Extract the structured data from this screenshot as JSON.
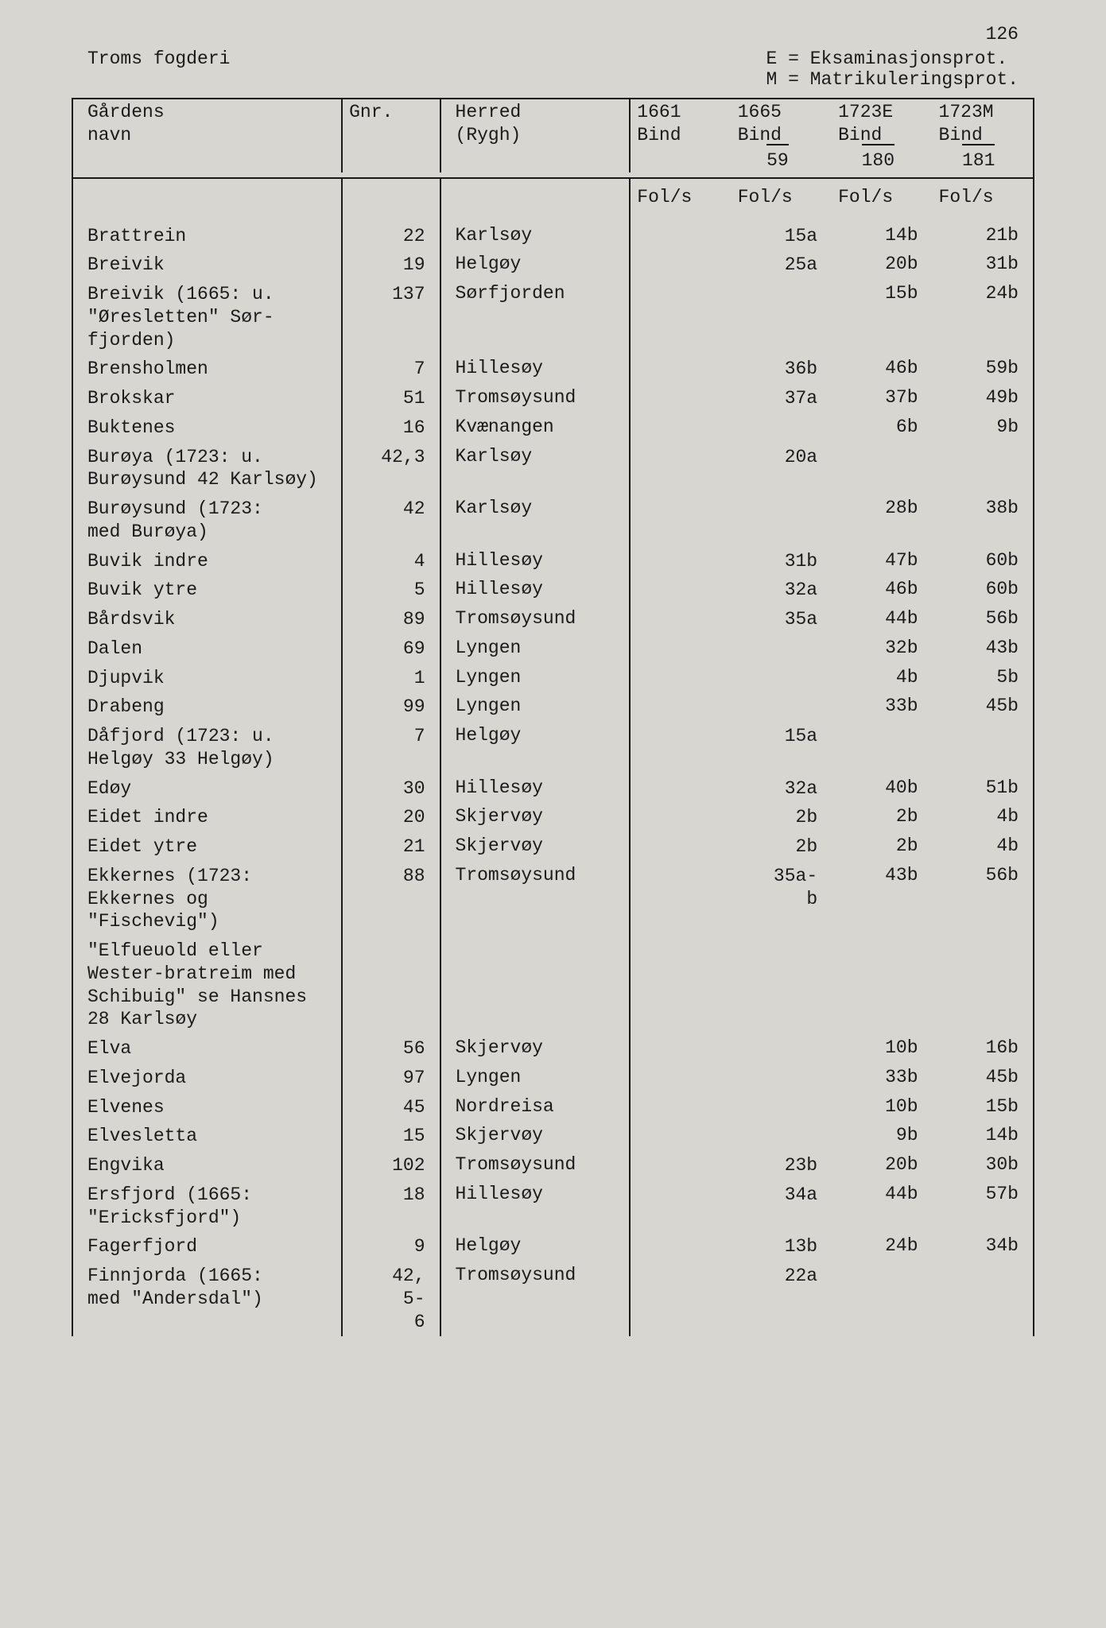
{
  "page_number": "126",
  "header_left": "Troms fogderi",
  "header_right": "E = Eksaminasjonsprot.\nM = Matrikuleringsprot.",
  "columns": {
    "name": "Gårdens\nnavn",
    "gnr": "Gnr.",
    "herred": "Herred\n(Rygh)",
    "c1661": "1661\nBind",
    "c1665": "1665\nBind",
    "c1723e": "1723E\nBind",
    "c1723m": "1723M\nBind"
  },
  "bind_row": {
    "c1665": "59",
    "c1723e": "180",
    "c1723m": "181"
  },
  "fols_label": "Fol/s",
  "rows": [
    {
      "name": "Brattrein",
      "gnr": "22",
      "herred": "Karlsøy",
      "c1661": "",
      "c1665": "15a",
      "c1723e": "14b",
      "c1723m": "21b"
    },
    {
      "name": "Breivik",
      "gnr": "19",
      "herred": "Helgøy",
      "c1661": "",
      "c1665": "25a",
      "c1723e": "20b",
      "c1723m": "31b"
    },
    {
      "name": "Breivik (1665: u.\n\"Øresletten\" Sør-\nfjorden)",
      "gnr": "137",
      "herred": "Sørfjorden",
      "c1661": "",
      "c1665": "",
      "c1723e": "15b",
      "c1723m": "24b"
    },
    {
      "name": "Brensholmen",
      "gnr": "7",
      "herred": "Hillesøy",
      "c1661": "",
      "c1665": "36b",
      "c1723e": "46b",
      "c1723m": "59b"
    },
    {
      "name": "Brokskar",
      "gnr": "51",
      "herred": "Tromsøysund",
      "c1661": "",
      "c1665": "37a",
      "c1723e": "37b",
      "c1723m": "49b"
    },
    {
      "name": "Buktenes",
      "gnr": "16",
      "herred": "Kvænangen",
      "c1661": "",
      "c1665": "",
      "c1723e": "6b",
      "c1723m": "9b"
    },
    {
      "name": "Burøya (1723: u.\nBurøysund 42 Karlsøy)",
      "gnr": "42,3",
      "herred": "Karlsøy",
      "c1661": "",
      "c1665": "20a",
      "c1723e": "",
      "c1723m": ""
    },
    {
      "name": "Burøysund (1723:\nmed Burøya)",
      "gnr": "42",
      "herred": "Karlsøy",
      "c1661": "",
      "c1665": "",
      "c1723e": "28b",
      "c1723m": "38b"
    },
    {
      "name": "Buvik indre",
      "gnr": "4",
      "herred": "Hillesøy",
      "c1661": "",
      "c1665": "31b",
      "c1723e": "47b",
      "c1723m": "60b"
    },
    {
      "name": "Buvik ytre",
      "gnr": "5",
      "herred": "Hillesøy",
      "c1661": "",
      "c1665": "32a",
      "c1723e": "46b",
      "c1723m": "60b"
    },
    {
      "name": "Bårdsvik",
      "gnr": "89",
      "herred": "Tromsøysund",
      "c1661": "",
      "c1665": "35a",
      "c1723e": "44b",
      "c1723m": "56b"
    },
    {
      "name": "Dalen",
      "gnr": "69",
      "herred": "Lyngen",
      "c1661": "",
      "c1665": "",
      "c1723e": "32b",
      "c1723m": "43b"
    },
    {
      "name": "Djupvik",
      "gnr": "1",
      "herred": "Lyngen",
      "c1661": "",
      "c1665": "",
      "c1723e": "4b",
      "c1723m": "5b"
    },
    {
      "name": "Drabeng",
      "gnr": "99",
      "herred": "Lyngen",
      "c1661": "",
      "c1665": "",
      "c1723e": "33b",
      "c1723m": "45b"
    },
    {
      "name": "Dåfjord (1723: u.\nHelgøy 33 Helgøy)",
      "gnr": "7",
      "herred": "Helgøy",
      "c1661": "",
      "c1665": "15a",
      "c1723e": "",
      "c1723m": ""
    },
    {
      "name": "Edøy",
      "gnr": "30",
      "herred": "Hillesøy",
      "c1661": "",
      "c1665": "32a",
      "c1723e": "40b",
      "c1723m": "51b"
    },
    {
      "name": "Eidet indre",
      "gnr": "20",
      "herred": "Skjervøy",
      "c1661": "",
      "c1665": "2b",
      "c1723e": "2b",
      "c1723m": "4b"
    },
    {
      "name": "Eidet ytre",
      "gnr": "21",
      "herred": "Skjervøy",
      "c1661": "",
      "c1665": "2b",
      "c1723e": "2b",
      "c1723m": "4b"
    },
    {
      "name": "Ekkernes (1723:\nEkkernes og\n\"Fischevig\")",
      "gnr": "88",
      "herred": "Tromsøysund",
      "c1661": "",
      "c1665": "35a-\nb",
      "c1723e": "43b",
      "c1723m": "56b"
    },
    {
      "name": "\"Elfueuold eller\nWester-bratreim med\nSchibuig\" se Hansnes\n28 Karlsøy",
      "gnr": "",
      "herred": "",
      "c1661": "",
      "c1665": "",
      "c1723e": "",
      "c1723m": ""
    },
    {
      "name": "Elva",
      "gnr": "56",
      "herred": "Skjervøy",
      "c1661": "",
      "c1665": "",
      "c1723e": "10b",
      "c1723m": "16b"
    },
    {
      "name": "Elvejorda",
      "gnr": "97",
      "herred": "Lyngen",
      "c1661": "",
      "c1665": "",
      "c1723e": "33b",
      "c1723m": "45b"
    },
    {
      "name": "Elvenes",
      "gnr": "45",
      "herred": "Nordreisa",
      "c1661": "",
      "c1665": "",
      "c1723e": "10b",
      "c1723m": "15b"
    },
    {
      "name": "Elvesletta",
      "gnr": "15",
      "herred": "Skjervøy",
      "c1661": "",
      "c1665": "",
      "c1723e": "9b",
      "c1723m": "14b"
    },
    {
      "name": "Engvika",
      "gnr": "102",
      "herred": "Tromsøysund",
      "c1661": "",
      "c1665": "23b",
      "c1723e": "20b",
      "c1723m": "30b"
    },
    {
      "name": "Ersfjord (1665:\n\"Ericksfjord\")",
      "gnr": "18",
      "herred": "Hillesøy",
      "c1661": "",
      "c1665": "34a",
      "c1723e": "44b",
      "c1723m": "57b"
    },
    {
      "name": "Fagerfjord",
      "gnr": "9",
      "herred": "Helgøy",
      "c1661": "",
      "c1665": "13b",
      "c1723e": "24b",
      "c1723m": "34b"
    },
    {
      "name": "Finnjorda (1665:\nmed \"Andersdal\")",
      "gnr": "42,\n5-\n6",
      "herred": "Tromsøysund",
      "c1661": "",
      "c1665": "22a",
      "c1723e": "",
      "c1723m": ""
    }
  ]
}
